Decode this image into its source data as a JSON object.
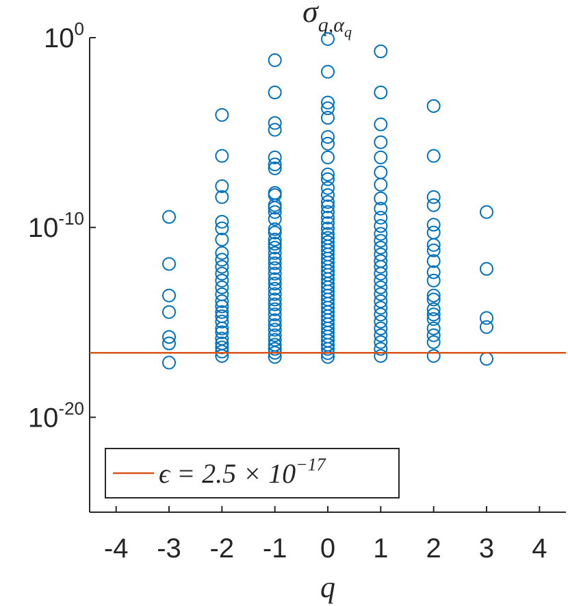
{
  "chart_data": {
    "type": "scatter",
    "title": "σ_q,α_q",
    "xlabel": "q",
    "color": "#0072bd",
    "x": [
      -3,
      -3,
      -3,
      -3,
      -3,
      -3,
      -3,
      -2,
      -2,
      -2,
      -2,
      -2,
      -2,
      -2,
      -2,
      -2,
      -2,
      -2,
      -2,
      -2,
      -2,
      -2,
      -2,
      -2,
      -2,
      -2,
      -2,
      -2,
      -2,
      -2,
      -2,
      -2,
      -2,
      -1,
      -1,
      -1,
      -1,
      -1,
      -1,
      -1,
      -1,
      -1,
      -1,
      -1,
      -1,
      -1,
      -1,
      -1,
      -1,
      -1,
      -1,
      -1,
      -1,
      -1,
      -1,
      -1,
      -1,
      -1,
      -1,
      -1,
      -1,
      -1,
      -1,
      -1,
      -1,
      -1,
      -1,
      -1,
      -1,
      -1,
      -1,
      -1,
      -1,
      0,
      0,
      0,
      0,
      0,
      0,
      0,
      0,
      0,
      0,
      0,
      0,
      0,
      0,
      0,
      0,
      0,
      0,
      0,
      0,
      0,
      0,
      0,
      0,
      0,
      0,
      0,
      0,
      0,
      0,
      0,
      0,
      0,
      0,
      0,
      0,
      0,
      0,
      0,
      0,
      0,
      0,
      0,
      0,
      0,
      0,
      0,
      0,
      0,
      1,
      1,
      1,
      1,
      1,
      1,
      1,
      1,
      1,
      1,
      1,
      1,
      1,
      1,
      1,
      1,
      1,
      1,
      1,
      1,
      1,
      1,
      1,
      1,
      1,
      1,
      1,
      1,
      1,
      1,
      2,
      2,
      2,
      2,
      2,
      2,
      2,
      2,
      2,
      2,
      2,
      2,
      2,
      2,
      2,
      2,
      2,
      2,
      2,
      2,
      3,
      3,
      3,
      3,
      3
    ],
    "values": [
      3.6e-10,
      1.2e-12,
      2.6e-14,
      3.5e-15,
      1.7e-16,
      7.8e-17,
      7.6e-18,
      8.5e-05,
      5.9e-07,
      1.5e-08,
      4e-09,
      2e-10,
      9e-11,
      2.3e-11,
      4.5e-12,
      2e-12,
      8.5e-13,
      3.7e-13,
      1.6e-13,
      7e-14,
      3e-14,
      1.3e-14,
      7e-15,
      3.5e-15,
      2.1e-15,
      1.1e-15,
      4.8e-16,
      3e-16,
      1.4e-16,
      7.8e-17,
      4.8e-17,
      2.9e-17,
      1.7e-17,
      0.065,
      0.0013,
      3.2e-05,
      1.4e-05,
      4.9e-07,
      2.1e-07,
      1.3e-07,
      6.6e-09,
      5.1e-09,
      1.5e-09,
      1.1e-09,
      6.5e-10,
      2.8e-10,
      8.1e-11,
      5.4e-11,
      2.3e-11,
      1.4e-11,
      8.7e-12,
      4.5e-12,
      2.3e-12,
      1.3e-12,
      7.2e-13,
      3.7e-13,
      1.9e-13,
      1.1e-13,
      5.9e-14,
      3.1e-14,
      1.6e-14,
      8.9e-15,
      4.9e-15,
      2.6e-15,
      1.3e-15,
      7.2e-16,
      4.1e-16,
      2.1e-16,
      1.2e-16,
      6.6e-17,
      4e-17,
      2.5e-17,
      1.5e-17,
      0.85,
      0.016,
      0.00038,
      0.00019,
      6e-05,
      5.9e-06,
      2.6e-06,
      4.9e-07,
      6.2e-08,
      3.5e-08,
      1.2e-08,
      5.1e-09,
      2.2e-09,
      1.3e-09,
      6.5e-10,
      3.3e-10,
      1.7e-10,
      8.9e-11,
      4.6e-11,
      2.8e-11,
      1.7e-11,
      1e-11,
      6.2e-12,
      3.8e-12,
      2.3e-12,
      1.4e-12,
      8.5e-13,
      5.1e-13,
      3.2e-13,
      1.9e-13,
      1.1e-13,
      7e-14,
      4.3e-14,
      2.6e-14,
      1.6e-14,
      9.6e-15,
      5.9e-15,
      3.5e-15,
      2.1e-15,
      1.3e-15,
      7.9e-16,
      4.8e-16,
      2.9e-16,
      1.8e-16,
      1.1e-16,
      6.6e-17,
      4e-17,
      2.4e-17,
      1.5e-17,
      0.19,
      0.0013,
      2.7e-05,
      3.1e-06,
      4.9e-07,
      8e-08,
      1.8e-08,
      3.4e-09,
      9.8e-10,
      3.3e-10,
      1.2e-10,
      4.6e-11,
      2e-11,
      8.7e-12,
      3.8e-12,
      1.7e-12,
      8.5e-13,
      3.7e-13,
      1.6e-13,
      7e-14,
      3.1e-14,
      1.3e-14,
      5.9e-15,
      2.6e-15,
      1.1e-15,
      4.8e-16,
      2.1e-16,
      9.1e-17,
      4e-17,
      1.7e-17,
      0.00025,
      5.9e-07,
      4e-09,
      1.5e-09,
      1.4e-10,
      5.4e-11,
      1.2e-11,
      6.2e-12,
      1.7e-12,
      4.4e-13,
      1.6e-13,
      2.6e-14,
      1.6e-14,
      4.9e-15,
      2.6e-15,
      1.5e-15,
      4.8e-16,
      2.1e-16,
      9.1e-17,
      1.7e-17,
      6.5e-10,
      6.6e-13,
      1.7e-15,
      5.7e-16,
      1.2e-17
    ],
    "xlim": [
      -4.5,
      4.5
    ],
    "xticks": [
      -4,
      -3,
      -2,
      -1,
      0,
      1,
      2,
      3,
      4
    ],
    "ylim": [
      1e-25,
      1
    ],
    "ylog": true,
    "yticks": [
      {
        "value": 1,
        "label": "10^0"
      },
      {
        "value": 1e-10,
        "label": "10^-10"
      },
      {
        "value": 1e-20,
        "label": "10^-20"
      }
    ],
    "reference_lines": [
      {
        "y": 2.5e-17,
        "color": "#d95319",
        "label": "ϵ = 2.5 × 10^−17"
      }
    ],
    "legend": "lower left"
  }
}
